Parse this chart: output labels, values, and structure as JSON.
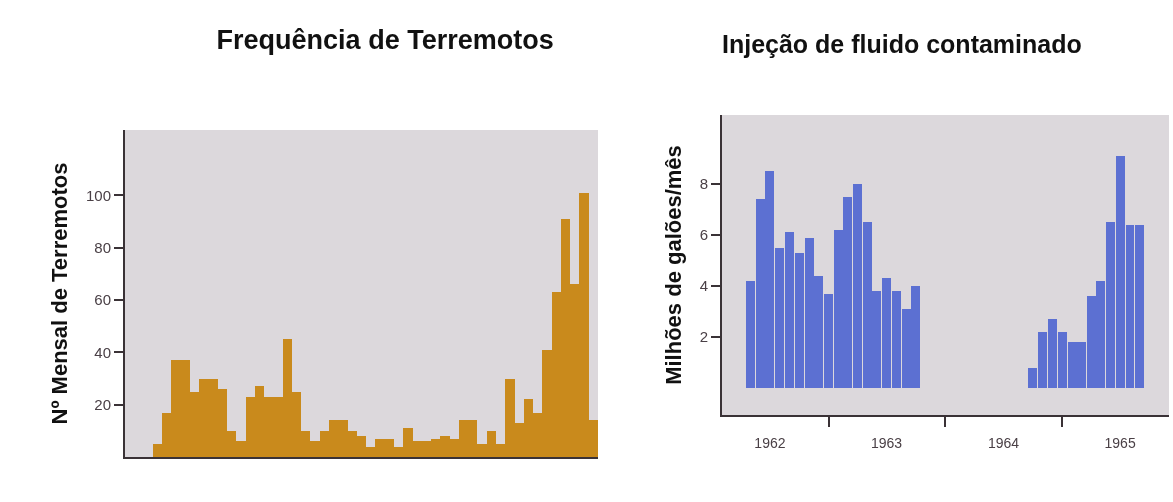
{
  "chart_data": [
    {
      "type": "bar",
      "title": "Frequência de Terremotos",
      "ylabel": "Nº Mensal de Terremotos",
      "categories": [
        null,
        null,
        null,
        null,
        null,
        null,
        null,
        null,
        null,
        null,
        null,
        null,
        null,
        null,
        null,
        null,
        null,
        null,
        null,
        null,
        null,
        null,
        null,
        null,
        null,
        null,
        null,
        null,
        null,
        null,
        null,
        null,
        null,
        null,
        null,
        null,
        null,
        null,
        null,
        null,
        null,
        null,
        null,
        null,
        null,
        null,
        null,
        null
      ],
      "values": [
        5,
        17,
        37,
        37,
        25,
        30,
        30,
        26,
        10,
        6,
        23,
        27,
        23,
        23,
        45,
        25,
        10,
        6,
        10,
        14,
        14,
        10,
        8,
        4,
        7,
        7,
        4,
        11,
        6,
        6,
        7,
        8,
        7,
        14,
        14,
        5,
        10,
        5,
        30,
        13,
        22,
        17,
        41,
        63,
        91,
        66,
        101,
        14
      ],
      "color": "#c98a1c",
      "ylim": [
        0,
        125
      ],
      "yticks": [
        20,
        40,
        60,
        80,
        100
      ],
      "grid": false,
      "legend": false
    },
    {
      "type": "bar",
      "title": "Injeção de fluido contaminado",
      "ylabel": "Milhões de galões/mês",
      "x": [
        "1962-05",
        "1962-06",
        "1962-07",
        "1962-08",
        "1962-09",
        "1962-10",
        "1962-11",
        "1962-12",
        "1963-01",
        "1963-02",
        "1963-03",
        "1963-04",
        "1963-05",
        "1963-06",
        "1963-07",
        "1963-08",
        "1963-09",
        "1963-10",
        "1964-10",
        "1964-11",
        "1964-12",
        "1965-01",
        "1965-02",
        "1965-03",
        "1965-04",
        "1965-05",
        "1965-06",
        "1965-07",
        "1965-08",
        "1965-09"
      ],
      "values": [
        4.2,
        7.4,
        8.5,
        5.5,
        6.1,
        5.3,
        5.9,
        4.4,
        3.7,
        6.2,
        7.5,
        8.0,
        6.5,
        3.8,
        4.3,
        3.8,
        3.1,
        4.0,
        0.8,
        2.2,
        2.7,
        2.2,
        1.8,
        1.8,
        3.6,
        4.2,
        6.5,
        9.1,
        6.4,
        6.4
      ],
      "color": "#5c70d2",
      "ylim": [
        -1.05,
        10.7
      ],
      "yticks": [
        2,
        4,
        6,
        8
      ],
      "xlim": [
        "1962-02-01",
        "1965-12-01"
      ],
      "xticks": [
        {
          "value": "1962-07-01",
          "label": "1962"
        },
        {
          "value": "1963-01-01",
          "label": null
        },
        {
          "value": "1963-07-01",
          "label": "1963"
        },
        {
          "value": "1964-01-01",
          "label": null
        },
        {
          "value": "1964-07-01",
          "label": "1964"
        },
        {
          "value": "1965-01-01",
          "label": null
        },
        {
          "value": "1965-07-01",
          "label": "1965"
        }
      ],
      "grid": false,
      "legend": false
    }
  ]
}
